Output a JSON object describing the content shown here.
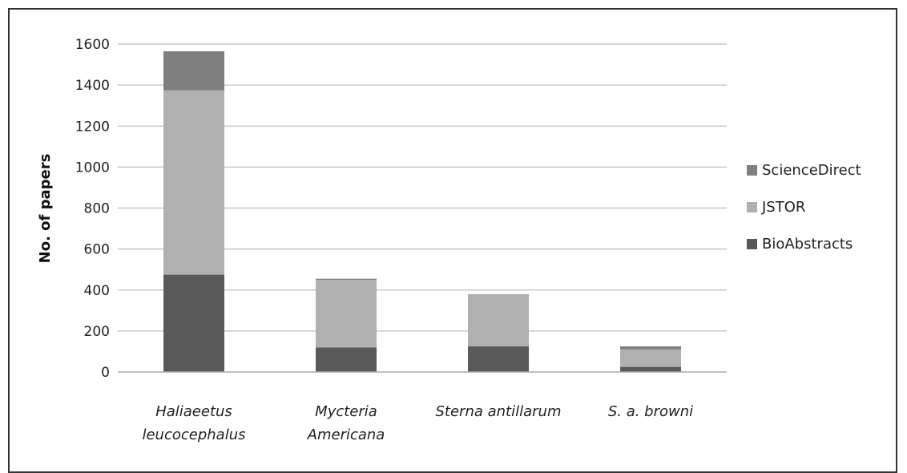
{
  "chart_data": {
    "type": "bar",
    "stacked": true,
    "categories": [
      [
        "Haliaeetus",
        "leucocephalus"
      ],
      [
        "Mycteria",
        "Americana"
      ],
      [
        "Sterna antillarum"
      ],
      [
        "S. a. browni"
      ]
    ],
    "series": [
      {
        "name": "BioAbstracts",
        "values": [
          475,
          120,
          125,
          25
        ],
        "color": "#595959"
      },
      {
        "name": "JSTOR",
        "values": [
          900,
          330,
          255,
          85
        ],
        "color": "#b0b0b0"
      },
      {
        "name": "ScienceDirect",
        "values": [
          190,
          5,
          0,
          15
        ],
        "color": "#7f7f7f"
      }
    ],
    "legend_order": [
      "ScienceDirect",
      "JSTOR",
      "BioAbstracts"
    ],
    "ylabel": "No. of papers",
    "xlabel": "",
    "ylim": [
      0,
      1600
    ],
    "yticks": [
      "0",
      "200",
      "400",
      "600",
      "800",
      "1000",
      "1200",
      "1400",
      "1600"
    ],
    "grid": true,
    "legend_position": "right"
  }
}
